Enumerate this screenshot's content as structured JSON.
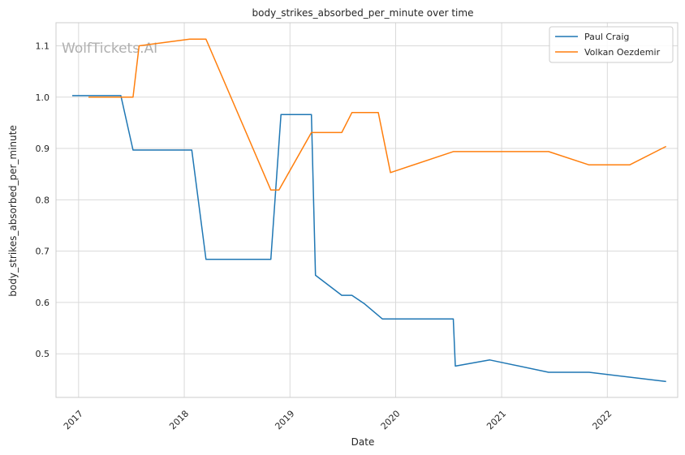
{
  "chart_data": {
    "type": "line",
    "title": "body_strikes_absorbed_per_minute over time",
    "xlabel": "Date",
    "ylabel": "body_strikes_absorbed_per_minute",
    "watermark": "WolfTickets.AI",
    "x_ticks": [
      "2017",
      "2018",
      "2019",
      "2020",
      "2021",
      "2022"
    ],
    "y_ticks": [
      "0.5",
      "0.6",
      "0.7",
      "0.8",
      "0.9",
      "1.0",
      "1.1"
    ],
    "xlim": [
      "2016-10-15",
      "2022-09-01"
    ],
    "ylim": [
      0.415,
      1.145
    ],
    "grid": true,
    "legend_position": "top-right",
    "series": [
      {
        "name": "Paul Craig",
        "color": "#1f77b4",
        "points": [
          [
            "2016-12-10",
            1.003
          ],
          [
            "2017-05-27",
            1.003
          ],
          [
            "2017-07-08",
            0.897
          ],
          [
            "2018-01-27",
            0.897
          ],
          [
            "2018-03-17",
            0.684
          ],
          [
            "2018-10-27",
            0.684
          ],
          [
            "2018-12-01",
            0.966
          ],
          [
            "2019-03-16",
            0.966
          ],
          [
            "2019-03-30",
            0.653
          ],
          [
            "2019-06-29",
            0.614
          ],
          [
            "2019-08-03",
            0.614
          ],
          [
            "2019-09-14",
            0.598
          ],
          [
            "2019-11-16",
            0.568
          ],
          [
            "2020-07-18",
            0.568
          ],
          [
            "2020-07-25",
            0.476
          ],
          [
            "2020-11-21",
            0.488
          ],
          [
            "2021-06-12",
            0.464
          ],
          [
            "2021-10-30",
            0.464
          ],
          [
            "2022-07-23",
            0.446
          ]
        ]
      },
      {
        "name": "Volkan Oezdemir",
        "color": "#ff7f0e",
        "points": [
          [
            "2017-02-04",
            1.0
          ],
          [
            "2017-07-08",
            1.0
          ],
          [
            "2017-07-29",
            1.1
          ],
          [
            "2018-01-20",
            1.113
          ],
          [
            "2018-03-17",
            1.113
          ],
          [
            "2018-10-27",
            0.819
          ],
          [
            "2018-11-24",
            0.819
          ],
          [
            "2019-03-16",
            0.931
          ],
          [
            "2019-06-29",
            0.931
          ],
          [
            "2019-08-03",
            0.97
          ],
          [
            "2019-11-02",
            0.97
          ],
          [
            "2019-12-14",
            0.853
          ],
          [
            "2020-07-18",
            0.894
          ],
          [
            "2021-06-12",
            0.894
          ],
          [
            "2021-10-30",
            0.868
          ],
          [
            "2022-03-19",
            0.868
          ],
          [
            "2022-07-23",
            0.904
          ]
        ]
      }
    ]
  }
}
